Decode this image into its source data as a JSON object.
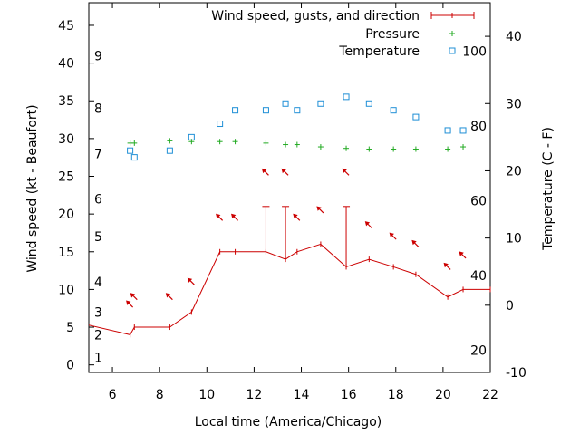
{
  "chart_data": {
    "type": "line",
    "xlabel": "Local time (America/Chicago)",
    "ylabel_left": "Wind speed (kt - Beaufort)",
    "ylabel_right": "Temperature (C - F)",
    "xlim": [
      5,
      22
    ],
    "ylim_left": [
      -1,
      48
    ],
    "ylim_right": [
      -10,
      45
    ],
    "x_ticks": [
      6,
      8,
      10,
      12,
      14,
      16,
      18,
      20,
      22
    ],
    "y_left_ticks": [
      0,
      5,
      10,
      15,
      20,
      25,
      30,
      35,
      40,
      45
    ],
    "y_right_ticks": [
      -10,
      0,
      10,
      20,
      30,
      40
    ],
    "fahrenheit_labels": [
      {
        "f": 20,
        "c": -6.67
      },
      {
        "f": 40,
        "c": 4.44
      },
      {
        "f": 60,
        "c": 15.56
      },
      {
        "f": 80,
        "c": 26.67
      },
      {
        "f": 100,
        "c": 37.78
      }
    ],
    "beaufort_labels": [
      {
        "label": "1",
        "kt": 1
      },
      {
        "label": "2",
        "kt": 4
      },
      {
        "label": "3",
        "kt": 7
      },
      {
        "label": "4",
        "kt": 11
      },
      {
        "label": "5",
        "kt": 17
      },
      {
        "label": "6",
        "kt": 22
      },
      {
        "label": "7",
        "kt": 28
      },
      {
        "label": "8",
        "kt": 34
      },
      {
        "label": "9",
        "kt": 41
      }
    ],
    "legend_position": "top-right",
    "legend": [
      "Wind speed, gusts, and direction",
      "Pressure",
      "Temperature"
    ],
    "colors": {
      "wind": "#cc0000",
      "pressure": "#22aa22",
      "temperature": "#1f8fd6"
    },
    "series": [
      {
        "name": "Wind speed, gusts, and direction",
        "axis": "left",
        "x": [
          4.0,
          6.75,
          6.93,
          8.43,
          9.35,
          10.55,
          11.2,
          12.5,
          13.33,
          13.82,
          14.82,
          15.9,
          16.87,
          17.9,
          18.85,
          20.2,
          20.85,
          22.0
        ],
        "y": [
          6,
          4,
          5,
          5,
          7,
          15,
          15,
          15,
          14,
          15,
          16,
          13,
          14,
          13,
          12,
          9,
          10,
          10
        ]
      },
      {
        "name": "Wind gusts",
        "axis": "left",
        "x": [
          12.5,
          13.33,
          15.9
        ],
        "y": [
          21,
          21,
          21
        ]
      },
      {
        "name": "Wind direction arrows",
        "axis": "left",
        "x": [
          6.75,
          6.93,
          8.43,
          9.35,
          10.55,
          11.2,
          12.5,
          13.33,
          13.82,
          14.82,
          15.9,
          16.87,
          17.9,
          18.85,
          20.2,
          20.85
        ],
        "y": [
          8,
          9,
          9,
          11,
          19.5,
          19.5,
          25.5,
          25.5,
          19.5,
          20.5,
          25.5,
          18.5,
          17,
          16,
          13,
          14.5
        ]
      },
      {
        "name": "Pressure",
        "axis": "left",
        "x": [
          6.75,
          6.93,
          8.43,
          9.35,
          10.55,
          11.2,
          12.5,
          13.33,
          13.82,
          14.82,
          15.9,
          16.87,
          17.9,
          18.85,
          20.2,
          20.85
        ],
        "y": [
          29.4,
          29.4,
          29.7,
          29.6,
          29.6,
          29.6,
          29.4,
          29.2,
          29.2,
          28.9,
          28.7,
          28.6,
          28.6,
          28.6,
          28.6,
          28.9
        ]
      },
      {
        "name": "Temperature",
        "axis": "right",
        "x": [
          6.75,
          6.93,
          8.43,
          9.35,
          10.55,
          11.2,
          12.5,
          13.33,
          13.82,
          14.82,
          15.9,
          16.87,
          17.9,
          18.85,
          20.2,
          20.85
        ],
        "y": [
          23,
          22,
          23,
          25,
          27,
          29,
          29,
          30,
          29,
          30,
          31,
          30,
          29,
          28,
          26,
          26
        ]
      }
    ]
  }
}
